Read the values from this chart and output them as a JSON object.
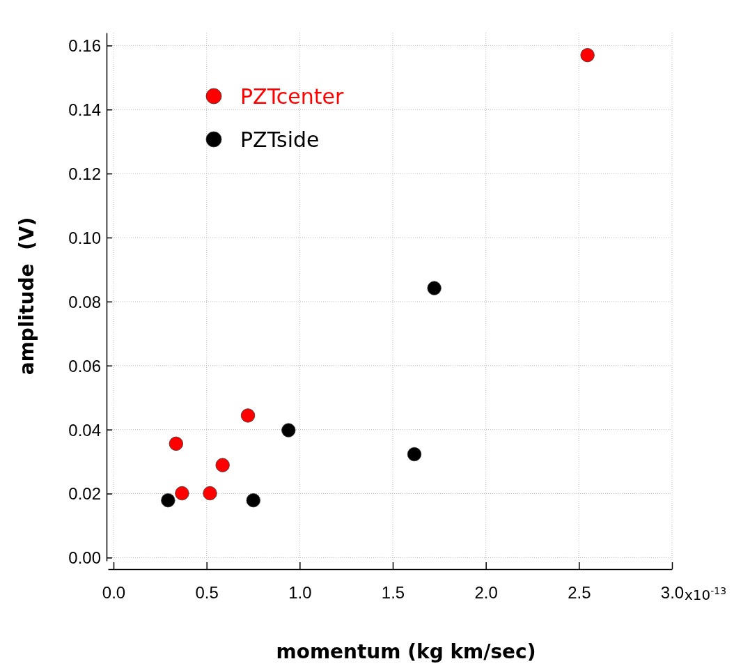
{
  "chart_data": {
    "type": "scatter",
    "xlabel": "momentum (kg km/sec)",
    "ylabel": "amplitude  (V)",
    "xlim": [
      -0.03,
      3.0
    ],
    "ylim": [
      -0.001,
      0.164
    ],
    "xticks": [
      {
        "value": 0,
        "label": "0.0"
      },
      {
        "value": 0.5,
        "label": "0.5"
      },
      {
        "value": 1,
        "label": "1.0"
      },
      {
        "value": 1.5,
        "label": "1.5"
      },
      {
        "value": 2,
        "label": "2.0"
      },
      {
        "value": 2.5,
        "label": "2.5"
      },
      {
        "value": 3,
        "label": "3.0"
      }
    ],
    "annotations": [
      "x10$^{-13}$"
    ],
    "yticks": [
      {
        "value": 0,
        "label": "0.00"
      },
      {
        "value": 0.02,
        "label": "0.02"
      },
      {
        "value": 0.04,
        "label": "0.04"
      },
      {
        "value": 0.06,
        "label": "0.06"
      },
      {
        "value": 0.08,
        "label": "0.08"
      },
      {
        "value": 0.1,
        "label": "0.10"
      },
      {
        "value": 0.12,
        "label": "0.12"
      },
      {
        "value": 0.14,
        "label": "0.14"
      },
      {
        "value": 0.16,
        "label": "0.16"
      }
    ],
    "grid": true,
    "legend": "top left",
    "marker": "circle",
    "series": [
      {
        "name": "PZTcenter",
        "color": "#ff0000",
        "x": [
          2.546,
          0.336,
          0.368,
          0.518,
          0.586,
          0.722
        ],
        "values": [
          0.157,
          0.0356,
          0.0201,
          0.0201,
          0.0289,
          0.0444
        ]
      },
      {
        "name": "PZTside",
        "color": "#000000",
        "x": [
          0.293,
          0.751,
          0.94,
          1.616,
          1.723
        ],
        "values": [
          0.0179,
          0.0179,
          0.0398,
          0.0323,
          0.0842
        ]
      }
    ]
  }
}
